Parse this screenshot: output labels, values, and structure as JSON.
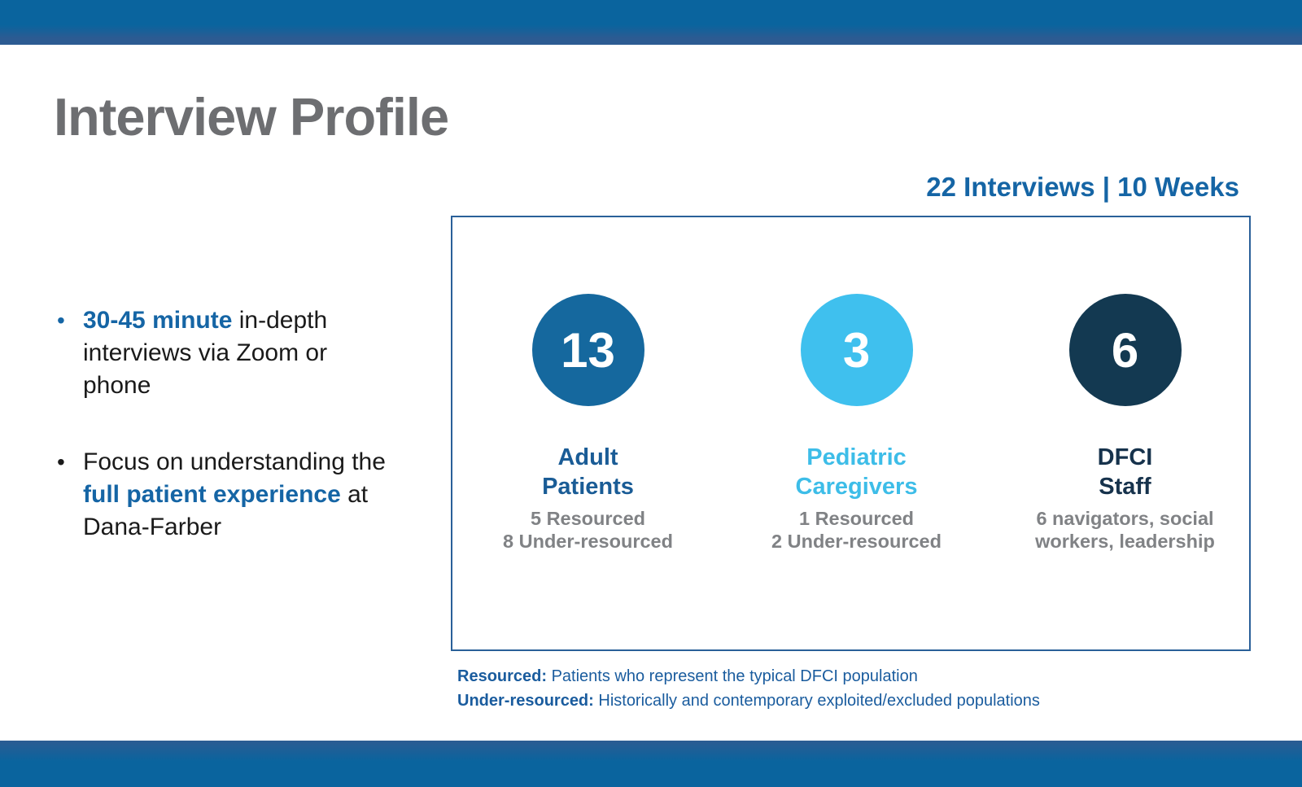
{
  "slide": {
    "title": "Interview Profile",
    "headline": "22 Interviews | 10 Weeks",
    "bullet_char": "•",
    "bullets": [
      {
        "marker_color": "#1565A5",
        "lines": [
          [
            {
              "t": "30-45 minute",
              "hl": true
            },
            {
              "t": " in-depth",
              "hl": false
            }
          ],
          [
            {
              "t": "interviews via Zoom or",
              "hl": false
            }
          ],
          [
            {
              "t": "phone",
              "hl": false
            }
          ]
        ]
      },
      {
        "marker_color": "#1A1A1A",
        "lines": [
          [
            {
              "t": "Focus on understanding the",
              "hl": false
            }
          ],
          [
            {
              "t": "full patient experience",
              "hl": true
            },
            {
              "t": " at",
              "hl": false
            }
          ],
          [
            {
              "t": "Dana-Farber",
              "hl": false
            }
          ]
        ]
      }
    ],
    "footnotes": [
      {
        "term": "Resourced:",
        "definition": " Patients who represent the typical DFCI population"
      },
      {
        "term": "Under-resourced:",
        "definition": " Historically and contemporary exploited/excluded populations"
      }
    ]
  },
  "stats": [
    {
      "value": "13",
      "label_lines": [
        "Adult",
        "Patients"
      ],
      "sub_lines": [
        "5 Resourced",
        "8 Under-resourced"
      ],
      "circle_color": "#15689E",
      "label_color": "#1A5C96"
    },
    {
      "value": "3",
      "label_lines": [
        "Pediatric",
        "Caregivers"
      ],
      "sub_lines": [
        "1 Resourced",
        "2 Under-resourced"
      ],
      "circle_color": "#3FC0EE",
      "label_color": "#3DBDE8"
    },
    {
      "value": "6",
      "label_lines": [
        "DFCI",
        "Staff"
      ],
      "sub_lines": [
        "6 navigators, social",
        "workers, leadership"
      ],
      "circle_color": "#133951",
      "label_color": "#16324C"
    }
  ],
  "colors": {
    "bar_blue": "#0A649E",
    "bar_band": "#2C5B92",
    "accent_blue": "#1565A5",
    "title_gray": "#6D6E71",
    "subtext_gray": "#808285",
    "footnote_blue": "#1A5C9E",
    "box_border": "#2A6099"
  }
}
